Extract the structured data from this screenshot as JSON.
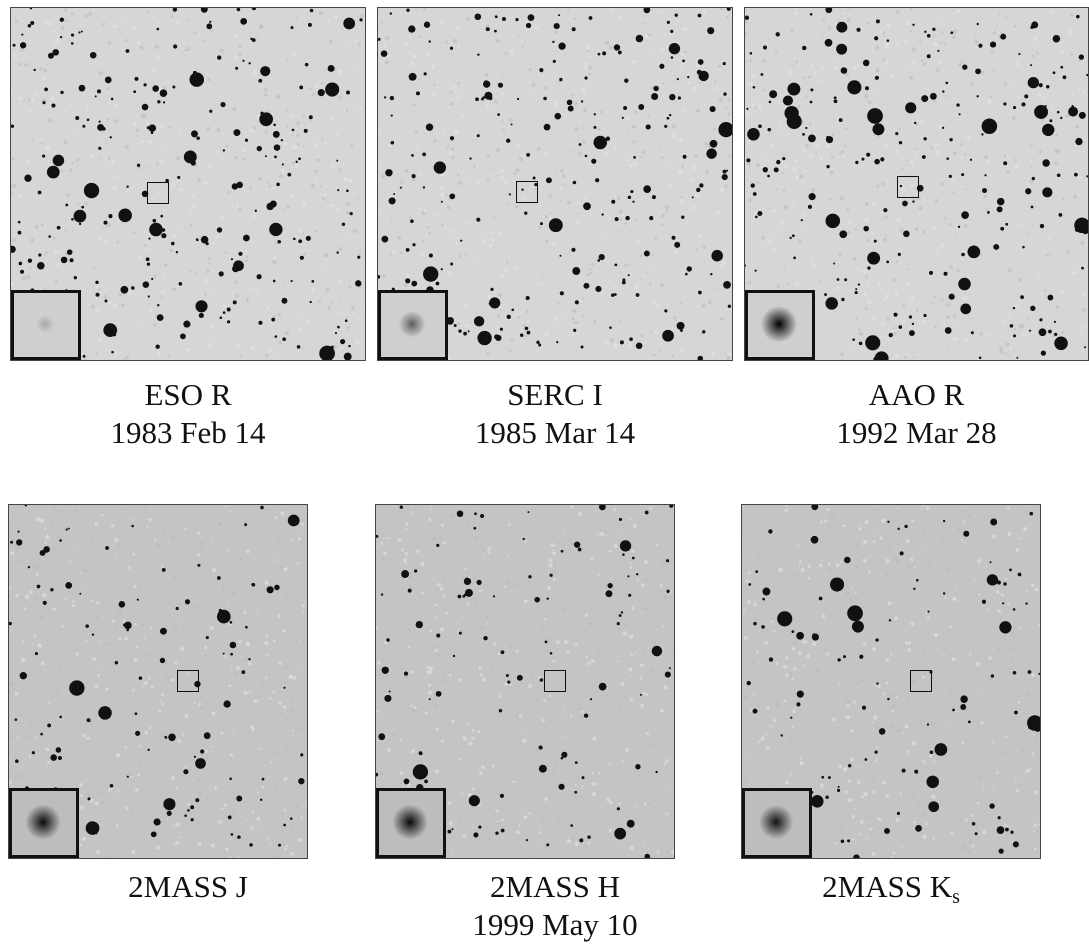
{
  "panels": [
    {
      "id": "eso-r",
      "label": "ESO R",
      "date": "1983 Feb 14",
      "source_brightness": 0.18
    },
    {
      "id": "serc-i",
      "label": "SERC I",
      "date": "1985 Mar 14",
      "source_brightness": 0.55
    },
    {
      "id": "aao-r",
      "label": "AAO R",
      "date": "1992 Mar 28",
      "source_brightness": 1.0
    },
    {
      "id": "2mass-j",
      "label": "2MASS J",
      "date": "",
      "source_brightness": 0.95
    },
    {
      "id": "2mass-h",
      "label": "2MASS H",
      "date": "1999 May 10",
      "source_brightness": 0.95
    },
    {
      "id": "2mass-ks",
      "label": "2MASS K",
      "label_subscript": "s",
      "date": "",
      "source_brightness": 0.9
    }
  ]
}
